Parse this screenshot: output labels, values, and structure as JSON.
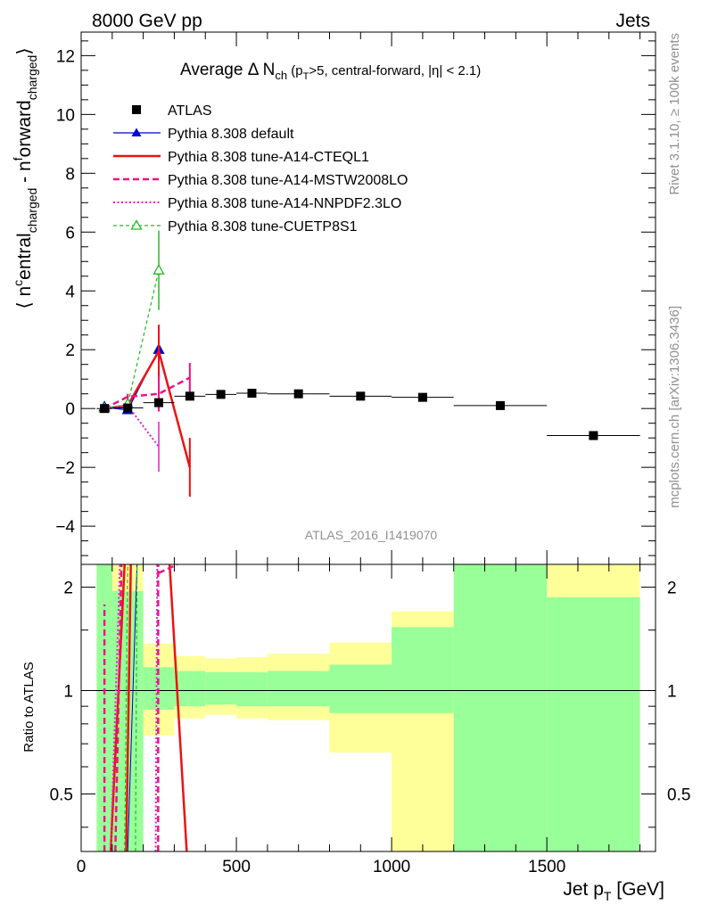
{
  "header": {
    "left": "8000 GeV pp",
    "right": "Jets"
  },
  "watermark": "ATLAS_2016_I1419070",
  "side_labels": {
    "rivet": "Rivet 3.1.10, ≥ 100k events",
    "mcplots": "mcplots.cern.ch [arXiv:1306.3436]"
  },
  "colors": {
    "atlas": "#000000",
    "default": "#0000cc",
    "cteql1": "#ee1111",
    "mstw": "#ee1188",
    "nnpdf": "#dd22cc",
    "cuetp8s1": "#22bb22",
    "band_inner": "#99ff99",
    "band_outer": "#ffff99"
  },
  "chart_data": [
    {
      "type": "scatter",
      "title": "Average Δ N_ch (p_T>5, central-forward, |η| < 2.1)",
      "title_parts": {
        "main": "Average Δ N",
        "sub": "ch",
        "mid1": " (p",
        "sub2": "T",
        "mid2": ">5, central-forward, |η| < 2.1)"
      },
      "ylabel": "⟨ n^central_charged - n^forward_charged ⟩",
      "ylabel_parts": {
        "open": "⟨ n",
        "sup1": "c",
        "t1": "entral",
        "sub1": "charged",
        "t2": " - n",
        "sup2": "f",
        "t3": "orward",
        "sub2": "charged",
        "close": "⟩"
      },
      "xlim": [
        0,
        1850
      ],
      "ylim": [
        -5.3,
        12.8
      ],
      "yticks": [
        -4,
        -2,
        0,
        2,
        4,
        6,
        8,
        10,
        12
      ],
      "ytick_labels": [
        "−4",
        "−2",
        "0",
        "2",
        "4",
        "6",
        "8",
        "10",
        "12"
      ],
      "legend_position": "top-left",
      "series": [
        {
          "name": "ATLAS",
          "style": "markers",
          "x": [
            75,
            150,
            250,
            350,
            450,
            550,
            700,
            900,
            1100,
            1350,
            1650
          ],
          "y": [
            0.0,
            0.02,
            0.2,
            0.42,
            0.48,
            0.52,
            0.5,
            0.42,
            0.38,
            0.1,
            -0.92
          ],
          "xerr": [
            25,
            50,
            50,
            50,
            50,
            50,
            100,
            100,
            100,
            150,
            150
          ]
        },
        {
          "name": "Pythia 8.308 default",
          "style": "line-triangle",
          "x": [
            75,
            150,
            250
          ],
          "y": [
            0.05,
            -0.05,
            2.0
          ],
          "err": [
            0.05,
            0.1,
            0.3
          ]
        },
        {
          "name": "Pythia 8.308 tune-A14-CTEQL1",
          "style": "line-thick",
          "x": [
            75,
            150,
            250,
            350
          ],
          "y": [
            0.0,
            0.1,
            1.95,
            -2.0
          ],
          "err": [
            0.05,
            0.1,
            0.9,
            1.0
          ]
        },
        {
          "name": "Pythia 8.308 tune-A14-MSTW2008LO",
          "style": "dashed",
          "x": [
            75,
            150,
            250,
            350
          ],
          "y": [
            0.0,
            0.4,
            0.5,
            1.05
          ],
          "err": [
            0.05,
            0.1,
            0.6,
            0.5
          ]
        },
        {
          "name": "Pythia 8.308 tune-A14-NNPDF2.3LO",
          "style": "dotted",
          "x": [
            75,
            150,
            250
          ],
          "y": [
            0.0,
            0.1,
            -1.3
          ],
          "err": [
            0.05,
            0.1,
            0.85
          ]
        },
        {
          "name": "Pythia 8.308 tune-CUETP8S1",
          "style": "dashed-open-triangle",
          "x": [
            75,
            150,
            250
          ],
          "y": [
            0.0,
            0.15,
            4.7
          ],
          "err": [
            0.05,
            0.1,
            1.35
          ]
        }
      ]
    },
    {
      "type": "line",
      "ylabel": "Ratio to ATLAS",
      "xlabel": "Jet p_T [GeV]",
      "xlabel_parts": {
        "main": "Jet p",
        "sub": "T",
        "unit": " [GeV]"
      },
      "xlim": [
        0,
        1850
      ],
      "ylim": [
        0.34,
        2.33
      ],
      "xticks": [
        0,
        500,
        1000,
        1500
      ],
      "xtick_labels": [
        "0",
        "500",
        "1000",
        "1500"
      ],
      "yticks": [
        0.5,
        1,
        2
      ],
      "ytick_labels": [
        "0.5",
        "1",
        "2"
      ],
      "bands": [
        {
          "x0": 50,
          "x1": 100,
          "inner": [
            0.34,
            2.33
          ],
          "outer": [
            0.34,
            2.33
          ]
        },
        {
          "x0": 100,
          "x1": 200,
          "inner": [
            0.34,
            1.95
          ],
          "outer": [
            0.34,
            2.33
          ]
        },
        {
          "x0": 200,
          "x1": 300,
          "inner": [
            0.88,
            1.17
          ],
          "outer": [
            0.74,
            1.37
          ]
        },
        {
          "x0": 300,
          "x1": 400,
          "inner": [
            0.9,
            1.14
          ],
          "outer": [
            0.83,
            1.26
          ]
        },
        {
          "x0": 400,
          "x1": 500,
          "inner": [
            0.91,
            1.13
          ],
          "outer": [
            0.85,
            1.24
          ]
        },
        {
          "x0": 500,
          "x1": 600,
          "inner": [
            0.9,
            1.13
          ],
          "outer": [
            0.83,
            1.25
          ]
        },
        {
          "x0": 600,
          "x1": 800,
          "inner": [
            0.9,
            1.14
          ],
          "outer": [
            0.82,
            1.28
          ]
        },
        {
          "x0": 800,
          "x1": 1000,
          "inner": [
            0.86,
            1.19
          ],
          "outer": [
            0.66,
            1.38
          ]
        },
        {
          "x0": 1000,
          "x1": 1200,
          "inner": [
            0.86,
            1.53
          ],
          "outer": [
            0.34,
            1.7
          ]
        },
        {
          "x0": 1200,
          "x1": 1500,
          "inner": [
            0.34,
            2.33
          ],
          "outer": [
            0.34,
            2.33
          ]
        },
        {
          "x0": 1500,
          "x1": 1800,
          "inner": [
            0.34,
            1.87
          ],
          "outer": [
            0.34,
            2.33
          ]
        }
      ],
      "ratio_lines": [
        {
          "series": "Pythia 8.308 default",
          "style": "thin",
          "segments": [
            {
              "x": [
                150,
                180
              ],
              "y": [
                0.34,
                2.33
              ]
            }
          ]
        },
        {
          "series": "Pythia 8.308 tune-A14-CTEQL1",
          "style": "line-thick",
          "segments": [
            {
              "x": [
                95,
                140
              ],
              "y": [
                0.34,
                2.33
              ]
            },
            {
              "x": [
                145,
                160
              ],
              "y": [
                0.34,
                2.33
              ]
            },
            {
              "x": [
                285,
                340
              ],
              "y": [
                2.33,
                0.34
              ]
            }
          ]
        },
        {
          "series": "Pythia 8.308 tune-A14-MSTW2008LO",
          "style": "dashed",
          "segments": [
            {
              "x": [
                75,
                75
              ],
              "y": [
                0.34,
                1.78
              ]
            },
            {
              "x": [
                110,
                130
              ],
              "y": [
                0.34,
                2.33
              ]
            },
            {
              "x": [
                248,
                248
              ],
              "y": [
                0.34,
                2.33
              ]
            },
            {
              "x": [
                250,
                310
              ],
              "y": [
                2.2,
                2.33
              ]
            }
          ]
        },
        {
          "series": "Pythia 8.308 tune-A14-NNPDF2.3LO",
          "style": "dotted",
          "segments": [
            {
              "x": [
                95,
                125
              ],
              "y": [
                0.34,
                2.33
              ]
            },
            {
              "x": [
                240,
                245
              ],
              "y": [
                0.34,
                2.33
              ]
            }
          ]
        },
        {
          "series": "Pythia 8.308 tune-CUETP8S1",
          "style": "dashed-open-triangle",
          "segments": [
            {
              "x": [
                140,
                150
              ],
              "y": [
                0.34,
                2.33
              ]
            },
            {
              "x": [
                175,
                180
              ],
              "y": [
                0.34,
                2.33
              ]
            }
          ]
        }
      ]
    }
  ]
}
